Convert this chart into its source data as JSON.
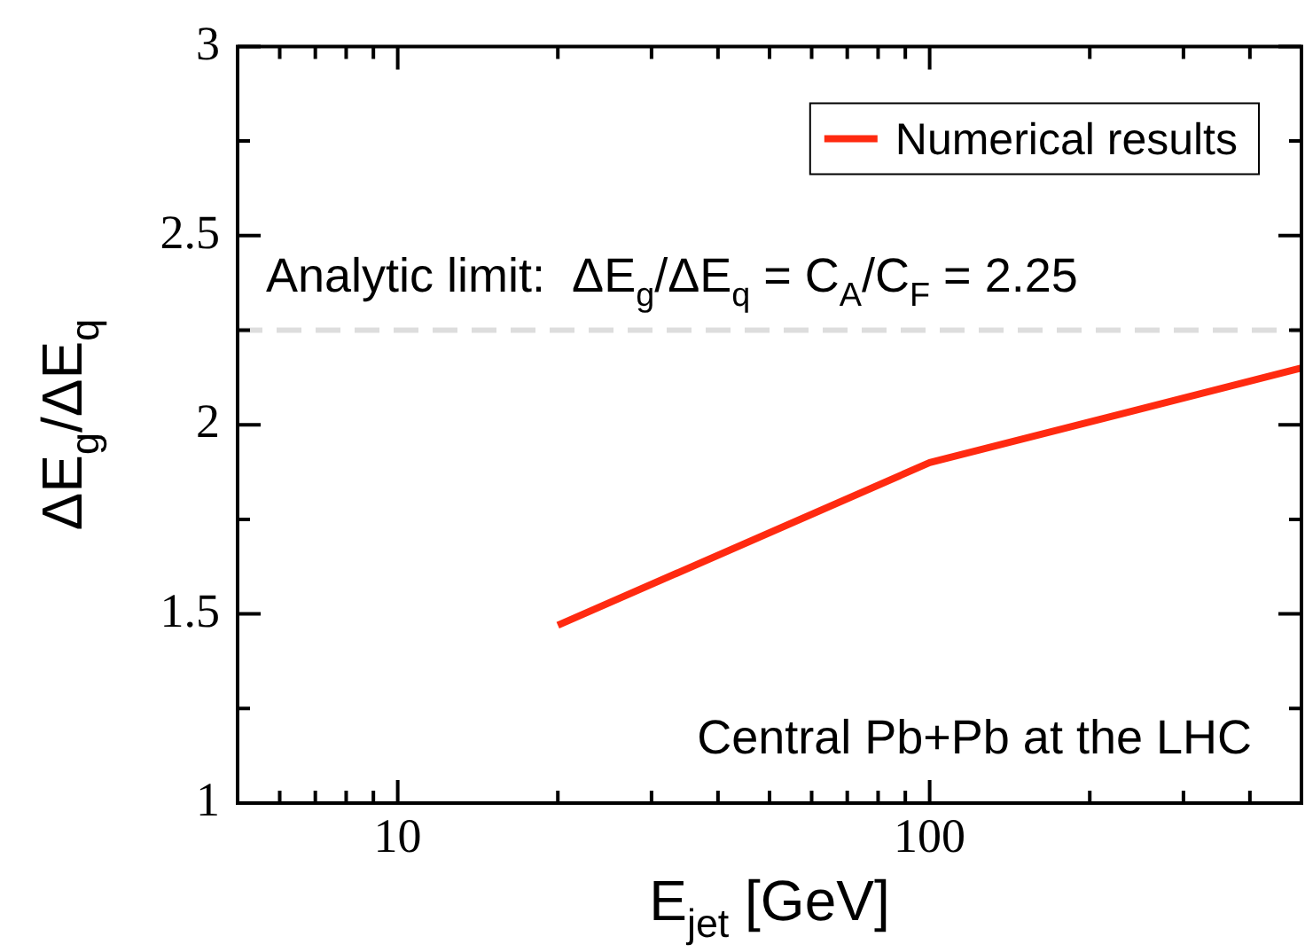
{
  "chart_data": {
    "type": "line",
    "xlabel": "E$_{jet}$ [GeV]",
    "ylabel": "ΔE$_{g}$/ΔE$_{q}$",
    "log": "x",
    "xlim": [
      5,
      500
    ],
    "ylim": [
      1,
      3
    ],
    "xticks": [
      {
        "value": 6,
        "label": null
      },
      {
        "value": 7,
        "label": null
      },
      {
        "value": 8,
        "label": null
      },
      {
        "value": 9,
        "label": null
      },
      10,
      {
        "value": 20,
        "label": null
      },
      {
        "value": 30,
        "label": null
      },
      {
        "value": 40,
        "label": null
      },
      {
        "value": 50,
        "label": null
      },
      {
        "value": 60,
        "label": null
      },
      {
        "value": 70,
        "label": null
      },
      {
        "value": 80,
        "label": null
      },
      {
        "value": 90,
        "label": null
      },
      100,
      {
        "value": 200,
        "label": null
      },
      {
        "value": 300,
        "label": null
      },
      {
        "value": 400,
        "label": null
      }
    ],
    "yticks": [
      1,
      {
        "value": 1.25,
        "label": null
      },
      1.5,
      {
        "value": 1.75,
        "label": null
      },
      2,
      {
        "value": 2.25,
        "label": null
      },
      2.5,
      {
        "value": 2.75,
        "label": null
      },
      3
    ],
    "series": [
      {
        "name": "Numerical results",
        "color": "#ff2a10",
        "x": [
          20,
          100,
          500
        ],
        "values": [
          1.47,
          1.9,
          2.15
        ]
      }
    ],
    "ref_lines": [
      {
        "axis": "y",
        "value": 2.25,
        "label": "Analytic limit:  ΔE$_{g}$/ΔE$_{q}$ = C$_{A}$/C$_{F}$ = 2.25",
        "color": "#dddddd",
        "line_style": "dashed"
      }
    ],
    "annotations": [
      "Central Pb+Pb at the LHC"
    ],
    "legend": "top right",
    "grid": false,
    "marker": "none",
    "line_style": "solid"
  }
}
